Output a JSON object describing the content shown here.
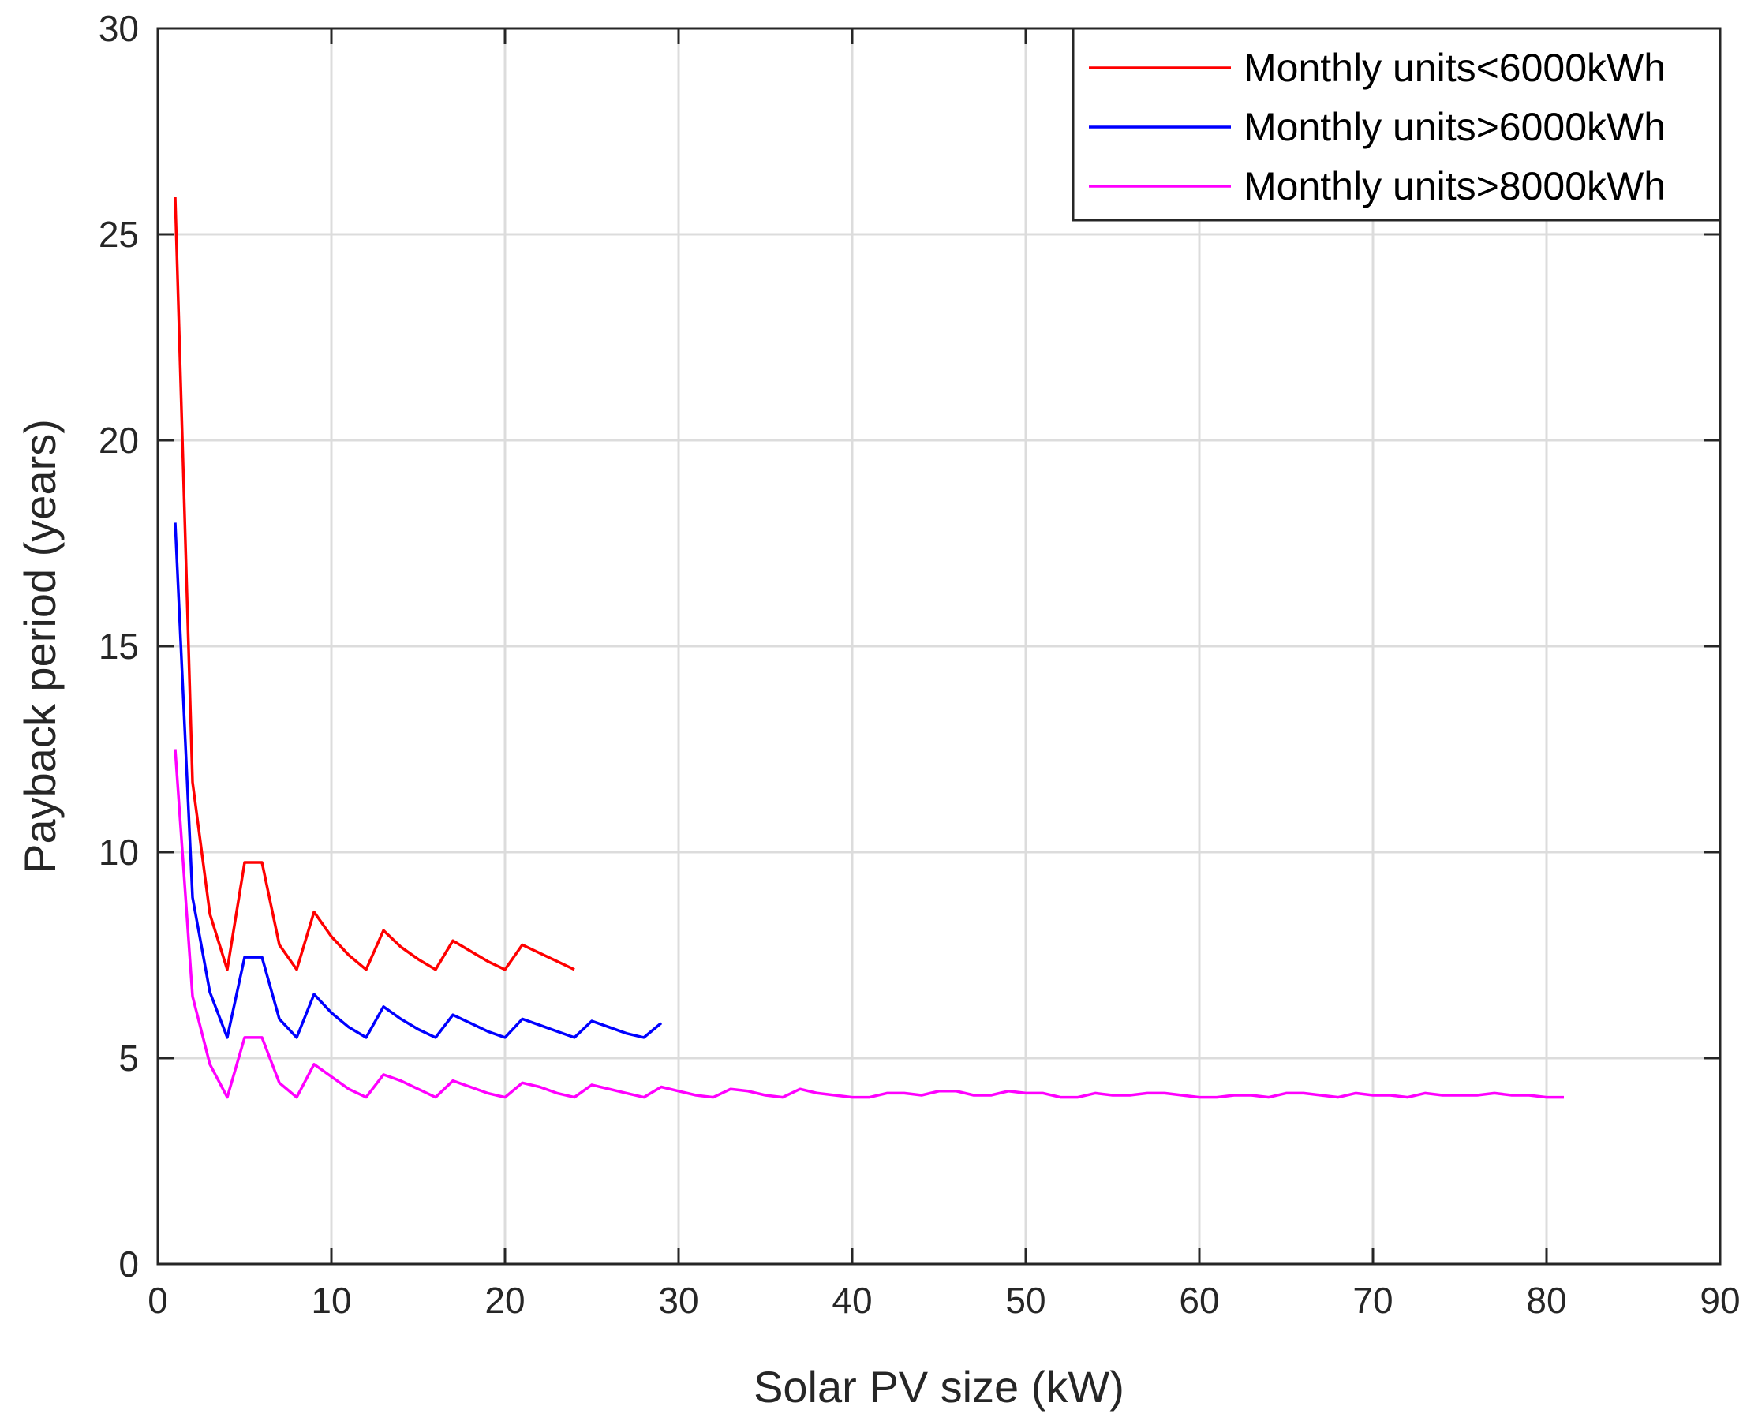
{
  "chart_data": {
    "type": "line",
    "title": "",
    "xlabel": "Solar PV size (kW)",
    "ylabel": "Payback period (years)",
    "xlim": [
      0,
      90
    ],
    "ylim": [
      0,
      30
    ],
    "xticks": [
      0,
      10,
      20,
      30,
      40,
      50,
      60,
      70,
      80,
      90
    ],
    "yticks": [
      0,
      5,
      10,
      15,
      20,
      25,
      30
    ],
    "grid": true,
    "legend_location": "top-right",
    "series": [
      {
        "name": "Monthly units<6000kWh",
        "color": "#ff0000",
        "x": [
          1,
          2,
          3,
          4,
          5,
          6,
          7,
          8,
          9,
          10,
          11,
          12,
          13,
          14,
          15,
          16,
          17,
          18,
          19,
          20,
          21,
          22,
          23,
          24
        ],
        "y": [
          25.9,
          11.7,
          8.5,
          7.15,
          9.75,
          9.75,
          7.75,
          7.15,
          8.55,
          7.95,
          7.5,
          7.15,
          8.1,
          7.7,
          7.4,
          7.15,
          7.85,
          7.6,
          7.35,
          7.15,
          7.75,
          7.55,
          7.35,
          7.15
        ]
      },
      {
        "name": "Monthly units>6000kWh",
        "color": "#0000ff",
        "x": [
          1,
          2,
          3,
          4,
          5,
          6,
          7,
          8,
          9,
          10,
          11,
          12,
          13,
          14,
          15,
          16,
          17,
          18,
          19,
          20,
          21,
          22,
          23,
          24,
          25,
          26,
          27,
          28,
          29
        ],
        "y": [
          18.0,
          8.9,
          6.6,
          5.5,
          7.45,
          7.45,
          5.95,
          5.5,
          6.55,
          6.1,
          5.75,
          5.5,
          6.25,
          5.95,
          5.7,
          5.5,
          6.05,
          5.85,
          5.65,
          5.5,
          5.95,
          5.8,
          5.65,
          5.5,
          5.9,
          5.75,
          5.6,
          5.5,
          5.85
        ]
      },
      {
        "name": "Monthly units>8000kWh",
        "color": "#ff00ff",
        "x": [
          1,
          2,
          3,
          4,
          5,
          6,
          7,
          8,
          9,
          10,
          11,
          12,
          13,
          14,
          15,
          16,
          17,
          18,
          19,
          20,
          21,
          22,
          23,
          24,
          25,
          26,
          27,
          28,
          29,
          30,
          31,
          32,
          33,
          34,
          35,
          36,
          37,
          38,
          39,
          40,
          41,
          42,
          43,
          44,
          45,
          46,
          47,
          48,
          49,
          50,
          51,
          52,
          53,
          54,
          55,
          56,
          57,
          58,
          59,
          60,
          61,
          62,
          63,
          64,
          65,
          66,
          67,
          68,
          69,
          70,
          71,
          72,
          73,
          74,
          75,
          76,
          77,
          78,
          79,
          80,
          81
        ],
        "y": [
          12.5,
          6.5,
          4.85,
          4.05,
          5.5,
          5.5,
          4.4,
          4.05,
          4.85,
          4.55,
          4.25,
          4.05,
          4.6,
          4.45,
          4.25,
          4.05,
          4.45,
          4.3,
          4.15,
          4.05,
          4.4,
          4.3,
          4.15,
          4.05,
          4.35,
          4.25,
          4.15,
          4.05,
          4.3,
          4.2,
          4.1,
          4.05,
          4.25,
          4.2,
          4.1,
          4.05,
          4.25,
          4.15,
          4.1,
          4.05,
          4.05,
          4.15,
          4.15,
          4.1,
          4.2,
          4.2,
          4.1,
          4.1,
          4.2,
          4.15,
          4.15,
          4.05,
          4.05,
          4.15,
          4.1,
          4.1,
          4.15,
          4.15,
          4.1,
          4.05,
          4.05,
          4.1,
          4.1,
          4.05,
          4.15,
          4.15,
          4.1,
          4.05,
          4.15,
          4.1,
          4.1,
          4.05,
          4.15,
          4.1,
          4.1,
          4.1,
          4.15,
          4.1,
          4.1,
          4.05,
          4.05
        ]
      }
    ]
  }
}
